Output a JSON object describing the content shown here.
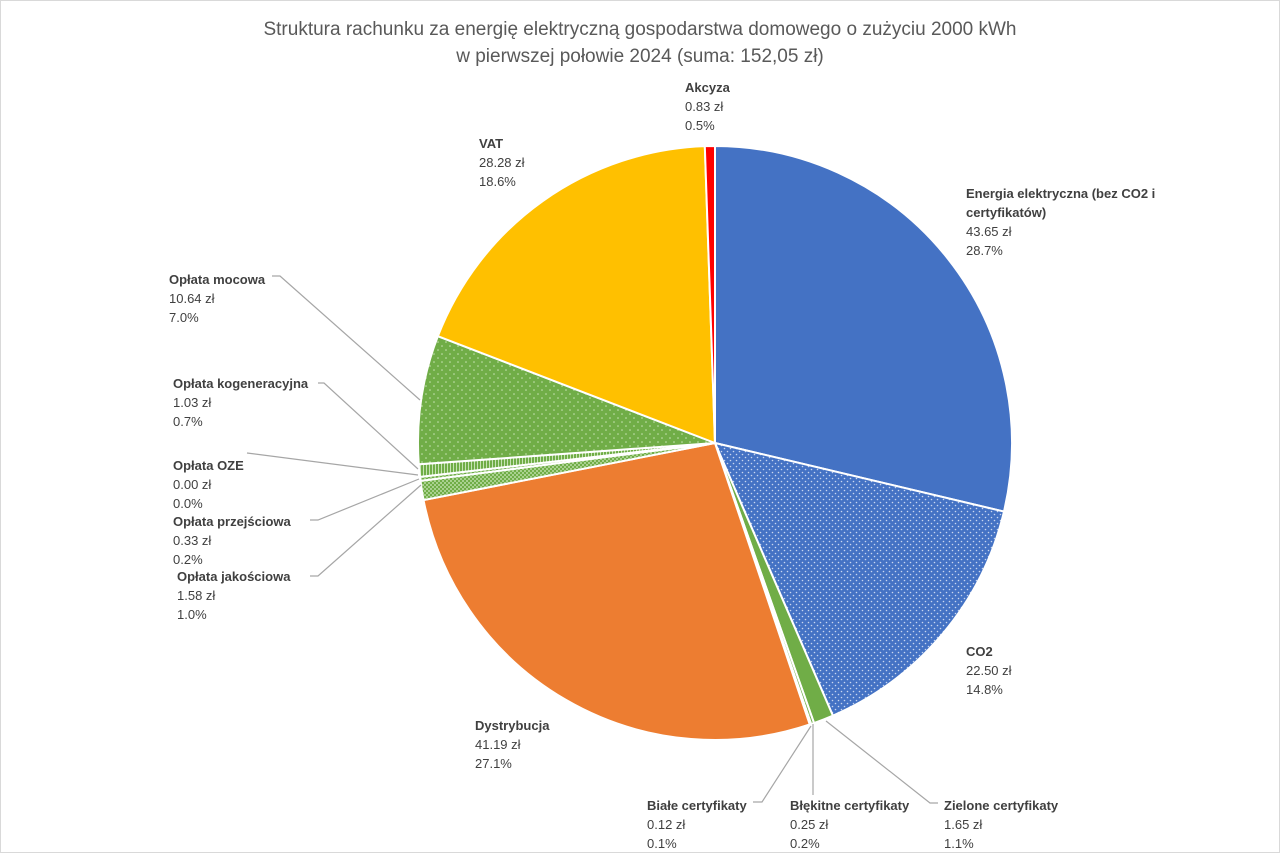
{
  "chart_data": {
    "type": "pie",
    "title_line1": "Struktura rachunku za energię elektryczną gospodarstwa domowego o zużyciu 2000 kWh",
    "title_line2": "w pierwszej połowie 2024 (suma: 152,05 zł)",
    "slices": [
      {
        "name": "Energia elektryczna (bez CO2 i certyfikatów)",
        "value": 43.65,
        "value_label": "43.65 zł",
        "percent_label": "28.7%",
        "color": "#4472C4",
        "pattern": "solid"
      },
      {
        "name": "CO2",
        "value": 22.5,
        "value_label": "22.50 zł",
        "percent_label": "14.8%",
        "color": "#4472C4",
        "pattern": "dots"
      },
      {
        "name": "Zielone certyfikaty",
        "value": 1.65,
        "value_label": "1.65 zł",
        "percent_label": "1.1%",
        "color": "#70AD47",
        "pattern": "solid"
      },
      {
        "name": "Błękitne certyfikaty",
        "value": 0.25,
        "value_label": "0.25 zł",
        "percent_label": "0.2%",
        "color": "#70AD47",
        "pattern": "dots"
      },
      {
        "name": "Białe certyfikaty",
        "value": 0.12,
        "value_label": "0.12 zł",
        "percent_label": "0.1%",
        "color": "#70AD47",
        "pattern": "dots"
      },
      {
        "name": "Dystrybucja",
        "value": 41.19,
        "value_label": "41.19 zł",
        "percent_label": "27.1%",
        "color": "#ED7D31",
        "pattern": "solid"
      },
      {
        "name": "Opłata jakościowa",
        "value": 1.58,
        "value_label": "1.58 zł",
        "percent_label": "1.0%",
        "color": "#70AD47",
        "pattern": "checker"
      },
      {
        "name": "Opłata przejściowa",
        "value": 0.33,
        "value_label": "0.33 zł",
        "percent_label": "0.2%",
        "color": "#70AD47",
        "pattern": "checker"
      },
      {
        "name": "Opłata OZE",
        "value": 0.0,
        "value_label": "0.00 zł",
        "percent_label": "0.0%",
        "color": "#70AD47",
        "pattern": "solid"
      },
      {
        "name": "Opłata kogeneracyjna",
        "value": 1.03,
        "value_label": "1.03 zł",
        "percent_label": "0.7%",
        "color": "#70AD47",
        "pattern": "stripes"
      },
      {
        "name": "Opłata mocowa",
        "value": 10.64,
        "value_label": "10.64 zł",
        "percent_label": "7.0%",
        "color": "#70AD47",
        "pattern": "dots"
      },
      {
        "name": "VAT",
        "value": 28.28,
        "value_label": "28.28 zł",
        "percent_label": "18.6%",
        "color": "#FFC000",
        "pattern": "solid"
      },
      {
        "name": "Akcyza",
        "value": 0.83,
        "value_label": "0.83 zł",
        "percent_label": "0.5%",
        "color": "#FF0000",
        "pattern": "solid"
      }
    ],
    "start_angle": "top",
    "direction": "clockwise",
    "legend": "none (data labels with leader lines)"
  }
}
